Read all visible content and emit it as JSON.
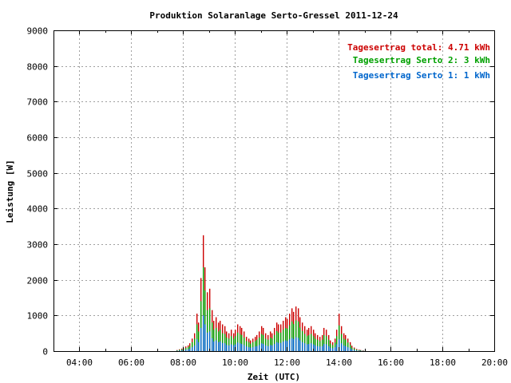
{
  "chart_data": {
    "type": "bar",
    "title": "Produktion Solaranlage Serto-Gressel 2011-12-24",
    "xlabel": "Zeit (UTC)",
    "ylabel": "Leistung [W]",
    "ylim": [
      0,
      9000
    ],
    "xlim_hours": [
      3.0,
      20.0
    ],
    "yticks": [
      0,
      1000,
      2000,
      3000,
      4000,
      5000,
      6000,
      7000,
      8000,
      9000
    ],
    "xticks": [
      "04:00",
      "06:00",
      "08:00",
      "10:00",
      "12:00",
      "14:00",
      "16:00",
      "18:00",
      "20:00"
    ],
    "grid": true,
    "legend_position": "top-right",
    "legend": [
      {
        "label": "Tagesertrag total:",
        "value": "4.71 kWh",
        "color": "#cc0000"
      },
      {
        "label": "Tagesertrag Serto 2:",
        "value": "3 kWh",
        "color": "#00a000"
      },
      {
        "label": "Tagesertrag Serto 1:",
        "value": "1 kWh",
        "color": "#0066cc"
      }
    ],
    "x": [
      "07:45",
      "07:50",
      "07:55",
      "08:00",
      "08:05",
      "08:10",
      "08:15",
      "08:20",
      "08:25",
      "08:30",
      "08:35",
      "08:40",
      "08:45",
      "08:50",
      "08:55",
      "09:00",
      "09:05",
      "09:10",
      "09:15",
      "09:20",
      "09:25",
      "09:30",
      "09:35",
      "09:40",
      "09:45",
      "09:50",
      "09:55",
      "10:00",
      "10:05",
      "10:10",
      "10:15",
      "10:20",
      "10:25",
      "10:30",
      "10:35",
      "10:40",
      "10:45",
      "10:50",
      "10:55",
      "11:00",
      "11:05",
      "11:10",
      "11:15",
      "11:20",
      "11:25",
      "11:30",
      "11:35",
      "11:40",
      "11:45",
      "11:50",
      "11:55",
      "12:00",
      "12:05",
      "12:10",
      "12:15",
      "12:20",
      "12:25",
      "12:30",
      "12:35",
      "12:40",
      "12:45",
      "12:50",
      "12:55",
      "13:00",
      "13:05",
      "13:10",
      "13:15",
      "13:20",
      "13:25",
      "13:30",
      "13:35",
      "13:40",
      "13:45",
      "13:50",
      "13:55",
      "14:00",
      "14:05",
      "14:10",
      "14:15",
      "14:20",
      "14:25",
      "14:30",
      "14:35",
      "14:40",
      "14:45",
      "14:50",
      "14:55",
      "15:00",
      "15:05",
      "15:10"
    ],
    "series": [
      {
        "name": "Tagesertrag total",
        "color": "#cc0000",
        "values": [
          30,
          50,
          70,
          100,
          130,
          160,
          220,
          350,
          500,
          1050,
          800,
          2050,
          3250,
          2350,
          1650,
          1750,
          1150,
          850,
          950,
          800,
          850,
          750,
          700,
          550,
          500,
          600,
          500,
          600,
          750,
          700,
          650,
          550,
          400,
          350,
          300,
          350,
          400,
          450,
          550,
          700,
          650,
          500,
          450,
          550,
          500,
          650,
          800,
          750,
          750,
          850,
          950,
          900,
          1050,
          1200,
          1100,
          1250,
          1200,
          950,
          800,
          700,
          600,
          650,
          700,
          600,
          500,
          450,
          400,
          450,
          650,
          600,
          450,
          300,
          250,
          350,
          600,
          1050,
          700,
          500,
          450,
          350,
          250,
          150,
          100,
          60,
          40,
          30,
          20,
          10,
          0,
          0
        ]
      },
      {
        "name": "Tagesertrag Serto 2",
        "color": "#00a000",
        "values": [
          20,
          35,
          50,
          70,
          90,
          110,
          150,
          250,
          350,
          750,
          550,
          1400,
          2350,
          1700,
          1150,
          1200,
          800,
          600,
          650,
          550,
          600,
          500,
          480,
          380,
          350,
          420,
          350,
          420,
          520,
          480,
          450,
          380,
          280,
          250,
          210,
          250,
          280,
          320,
          380,
          480,
          450,
          350,
          320,
          380,
          350,
          450,
          560,
          520,
          520,
          600,
          650,
          630,
          720,
          830,
          760,
          860,
          830,
          660,
          560,
          480,
          420,
          450,
          480,
          420,
          350,
          320,
          280,
          320,
          450,
          420,
          320,
          210,
          170,
          240,
          420,
          720,
          480,
          350,
          320,
          240,
          170,
          100,
          70,
          40,
          25,
          20,
          12,
          6,
          0,
          0
        ]
      },
      {
        "name": "Tagesertrag Serto 1",
        "color": "#0066cc",
        "values": [
          8,
          15,
          20,
          30,
          40,
          50,
          70,
          110,
          160,
          330,
          250,
          650,
          1000,
          750,
          520,
          550,
          360,
          270,
          300,
          250,
          270,
          230,
          220,
          170,
          160,
          190,
          160,
          190,
          240,
          220,
          200,
          170,
          130,
          110,
          95,
          110,
          130,
          140,
          170,
          220,
          200,
          160,
          140,
          170,
          160,
          200,
          250,
          230,
          230,
          270,
          300,
          280,
          330,
          370,
          340,
          390,
          370,
          300,
          250,
          220,
          190,
          200,
          220,
          190,
          160,
          140,
          130,
          140,
          200,
          190,
          140,
          95,
          80,
          110,
          190,
          330,
          220,
          160,
          140,
          110,
          80,
          45,
          30,
          18,
          12,
          9,
          6,
          3,
          0,
          0
        ]
      }
    ]
  }
}
